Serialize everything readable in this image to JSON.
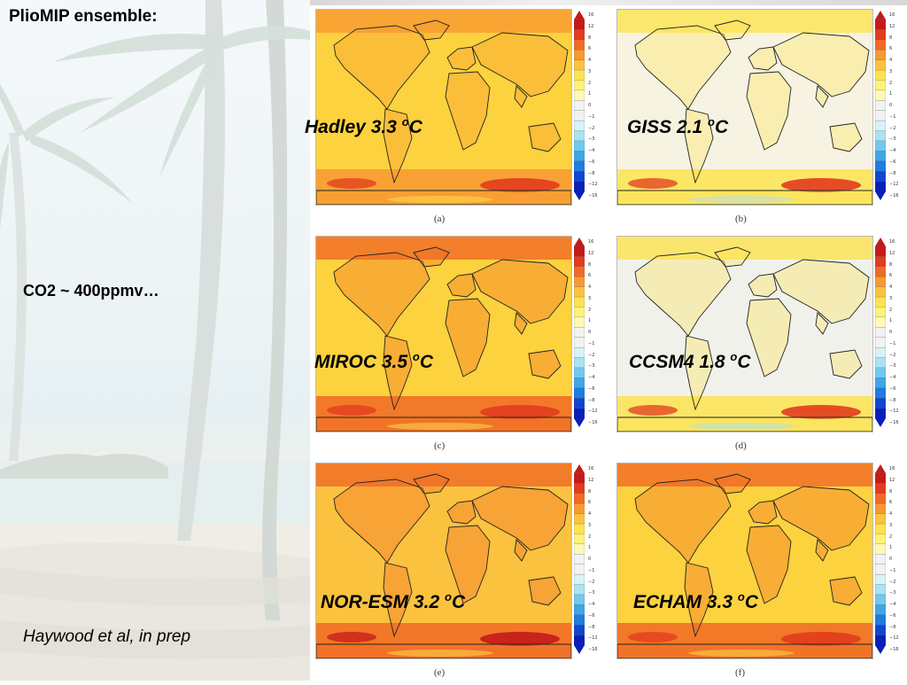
{
  "slide": {
    "title": "PlioMIP ensemble:",
    "co2": "CO2 ~ 400ppmv…",
    "citation": "Haywood et al, in prep"
  },
  "colorbar": {
    "ticks": [
      "16",
      "12",
      "8",
      "6",
      "4",
      "3",
      "2",
      "1",
      "0",
      "−1",
      "−2",
      "−3",
      "−4",
      "−6",
      "−8",
      "−12",
      "−16"
    ],
    "colors": [
      "#c41a1a",
      "#e23b1e",
      "#f06a25",
      "#f79a32",
      "#fbc23f",
      "#fde34f",
      "#fff277",
      "#fff9b5",
      "#f2f2f2",
      "#f2f2f2",
      "#d8f2f8",
      "#a9e3f3",
      "#72c9ee",
      "#3fa6e8",
      "#1f7ce0",
      "#1046d0",
      "#0a1fb8"
    ]
  },
  "panels": [
    {
      "letter": "(a)",
      "model": "Hadley 3.3 ",
      "deg": "o",
      "unit": "C"
    },
    {
      "letter": "(b)",
      "model": "GISS 2.1 ",
      "deg": "o",
      "unit": "C"
    },
    {
      "letter": "(c)",
      "model": "MIROC 3.5 ",
      "deg": "o",
      "unit": "C"
    },
    {
      "letter": "(d)",
      "model": "CCSM4 1.8 ",
      "deg": "o",
      "unit": "C"
    },
    {
      "letter": "(e)",
      "model": "NOR-ESM 3.2 ",
      "deg": "o",
      "unit": "C"
    },
    {
      "letter": "(f)",
      "model": "ECHAM 3.3 ",
      "deg": "o",
      "unit": "C"
    }
  ]
}
